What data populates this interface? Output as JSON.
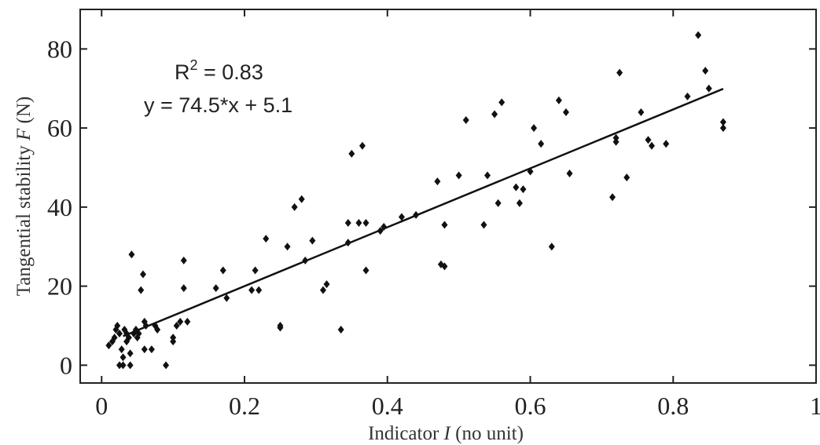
{
  "chart_data": {
    "type": "scatter",
    "title": "",
    "xlabel_pre": "Indicator ",
    "xlabel_var": "I",
    "xlabel_post": " (no unit)",
    "ylabel_pre": "Tangential stability ",
    "ylabel_var": "F",
    "ylabel_post": " (N)",
    "xlim": [
      -0.03,
      1.0
    ],
    "ylim": [
      -4.5,
      90
    ],
    "xticks": [
      0,
      0.2,
      0.4,
      0.6,
      0.8,
      1
    ],
    "xtick_labels": [
      "0",
      "0.2",
      "0.4",
      "0.6",
      "0.8",
      "1"
    ],
    "yticks": [
      0,
      20,
      40,
      60,
      80
    ],
    "ytick_labels": [
      "0",
      "20",
      "40",
      "60",
      "80"
    ],
    "grid": false,
    "annotations": {
      "r2_base": "R",
      "r2_sup": "2",
      "r2_rest": " = 0.83",
      "equation": "y = 74.5*x + 5.1"
    },
    "fit_line": {
      "slope": 74.5,
      "intercept": 5.1,
      "x_range": [
        0.03,
        0.87
      ]
    },
    "series": [
      {
        "points": [
          [
            0.01,
            5
          ],
          [
            0.015,
            6
          ],
          [
            0.018,
            7
          ],
          [
            0.02,
            9
          ],
          [
            0.022,
            10
          ],
          [
            0.025,
            8
          ],
          [
            0.025,
            0
          ],
          [
            0.028,
            4
          ],
          [
            0.03,
            2
          ],
          [
            0.03,
            0
          ],
          [
            0.032,
            9
          ],
          [
            0.035,
            8
          ],
          [
            0.035,
            6
          ],
          [
            0.038,
            7
          ],
          [
            0.04,
            0
          ],
          [
            0.04,
            3
          ],
          [
            0.042,
            28
          ],
          [
            0.045,
            8
          ],
          [
            0.048,
            9
          ],
          [
            0.05,
            7
          ],
          [
            0.052,
            8
          ],
          [
            0.055,
            19
          ],
          [
            0.058,
            23
          ],
          [
            0.06,
            11
          ],
          [
            0.06,
            4
          ],
          [
            0.062,
            10
          ],
          [
            0.07,
            4
          ],
          [
            0.075,
            10
          ],
          [
            0.078,
            9
          ],
          [
            0.09,
            0
          ],
          [
            0.1,
            6
          ],
          [
            0.1,
            7
          ],
          [
            0.105,
            10
          ],
          [
            0.11,
            11
          ],
          [
            0.115,
            26.5
          ],
          [
            0.115,
            19.5
          ],
          [
            0.12,
            11
          ],
          [
            0.16,
            19.5
          ],
          [
            0.17,
            24
          ],
          [
            0.175,
            17
          ],
          [
            0.21,
            19
          ],
          [
            0.215,
            24
          ],
          [
            0.22,
            19
          ],
          [
            0.23,
            32
          ],
          [
            0.25,
            10
          ],
          [
            0.25,
            9.5
          ],
          [
            0.26,
            30
          ],
          [
            0.27,
            40
          ],
          [
            0.28,
            42
          ],
          [
            0.285,
            26.5
          ],
          [
            0.295,
            31.5
          ],
          [
            0.31,
            19
          ],
          [
            0.315,
            20.5
          ],
          [
            0.335,
            9
          ],
          [
            0.345,
            31
          ],
          [
            0.345,
            36
          ],
          [
            0.35,
            53.5
          ],
          [
            0.36,
            36
          ],
          [
            0.365,
            55.5
          ],
          [
            0.37,
            36
          ],
          [
            0.37,
            24
          ],
          [
            0.39,
            34
          ],
          [
            0.395,
            35
          ],
          [
            0.42,
            37.5
          ],
          [
            0.44,
            38
          ],
          [
            0.47,
            46.5
          ],
          [
            0.475,
            25.5
          ],
          [
            0.48,
            25
          ],
          [
            0.48,
            35.5
          ],
          [
            0.5,
            48
          ],
          [
            0.51,
            62
          ],
          [
            0.535,
            35.5
          ],
          [
            0.54,
            48
          ],
          [
            0.55,
            63.5
          ],
          [
            0.555,
            41
          ],
          [
            0.56,
            66.5
          ],
          [
            0.58,
            45
          ],
          [
            0.585,
            41
          ],
          [
            0.59,
            44.5
          ],
          [
            0.6,
            49
          ],
          [
            0.605,
            60
          ],
          [
            0.615,
            56
          ],
          [
            0.63,
            30
          ],
          [
            0.64,
            67
          ],
          [
            0.65,
            64
          ],
          [
            0.655,
            48.5
          ],
          [
            0.715,
            42.5
          ],
          [
            0.72,
            56.5
          ],
          [
            0.72,
            57.5
          ],
          [
            0.725,
            74
          ],
          [
            0.735,
            47.5
          ],
          [
            0.755,
            64
          ],
          [
            0.765,
            57
          ],
          [
            0.77,
            55.5
          ],
          [
            0.79,
            56
          ],
          [
            0.82,
            68
          ],
          [
            0.835,
            83.5
          ],
          [
            0.845,
            74.5
          ],
          [
            0.85,
            70
          ],
          [
            0.87,
            61.5
          ],
          [
            0.87,
            60
          ]
        ]
      }
    ]
  }
}
